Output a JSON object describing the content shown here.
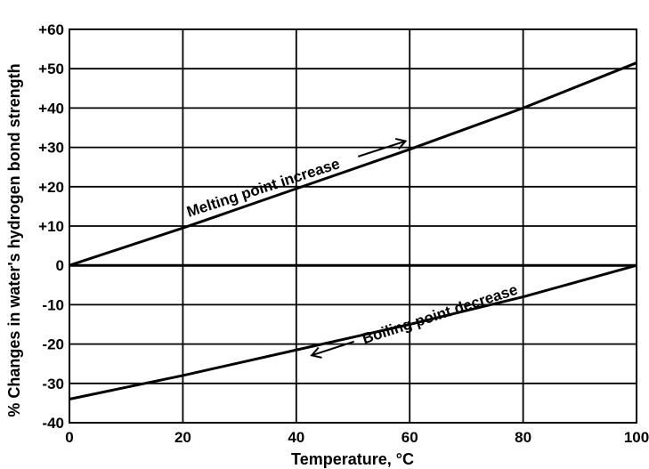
{
  "chart_data": {
    "type": "line",
    "title": "",
    "xlabel": "Temperature, °C",
    "ylabel": "% Changes in water's hydrogen bond strength",
    "xlim": [
      0,
      100
    ],
    "ylim": [
      -40,
      60
    ],
    "xticks": [
      0,
      20,
      40,
      60,
      80,
      100
    ],
    "yticks": [
      -40,
      -30,
      -20,
      -10,
      0,
      10,
      20,
      30,
      40,
      50,
      60
    ],
    "ytick_labels": [
      "-40",
      "-30",
      "-20",
      "-10",
      "0",
      "+10",
      "+20",
      "+30",
      "+40",
      "+50",
      "+60"
    ],
    "grid": true,
    "series": [
      {
        "name": "Melting point increase",
        "x": [
          0,
          20,
          40,
          60,
          80,
          100
        ],
        "y": [
          0,
          9.5,
          19.5,
          29.5,
          40,
          51.5
        ]
      },
      {
        "name": "Boiling point decrease",
        "x": [
          0,
          20,
          40,
          60,
          80,
          100
        ],
        "y": [
          -34,
          -28,
          -21.5,
          -15,
          -8,
          0
        ]
      }
    ],
    "annotations": [
      {
        "text": "Melting point increase",
        "series": 0
      },
      {
        "text": "Boiling point decrease",
        "series": 1
      }
    ]
  }
}
